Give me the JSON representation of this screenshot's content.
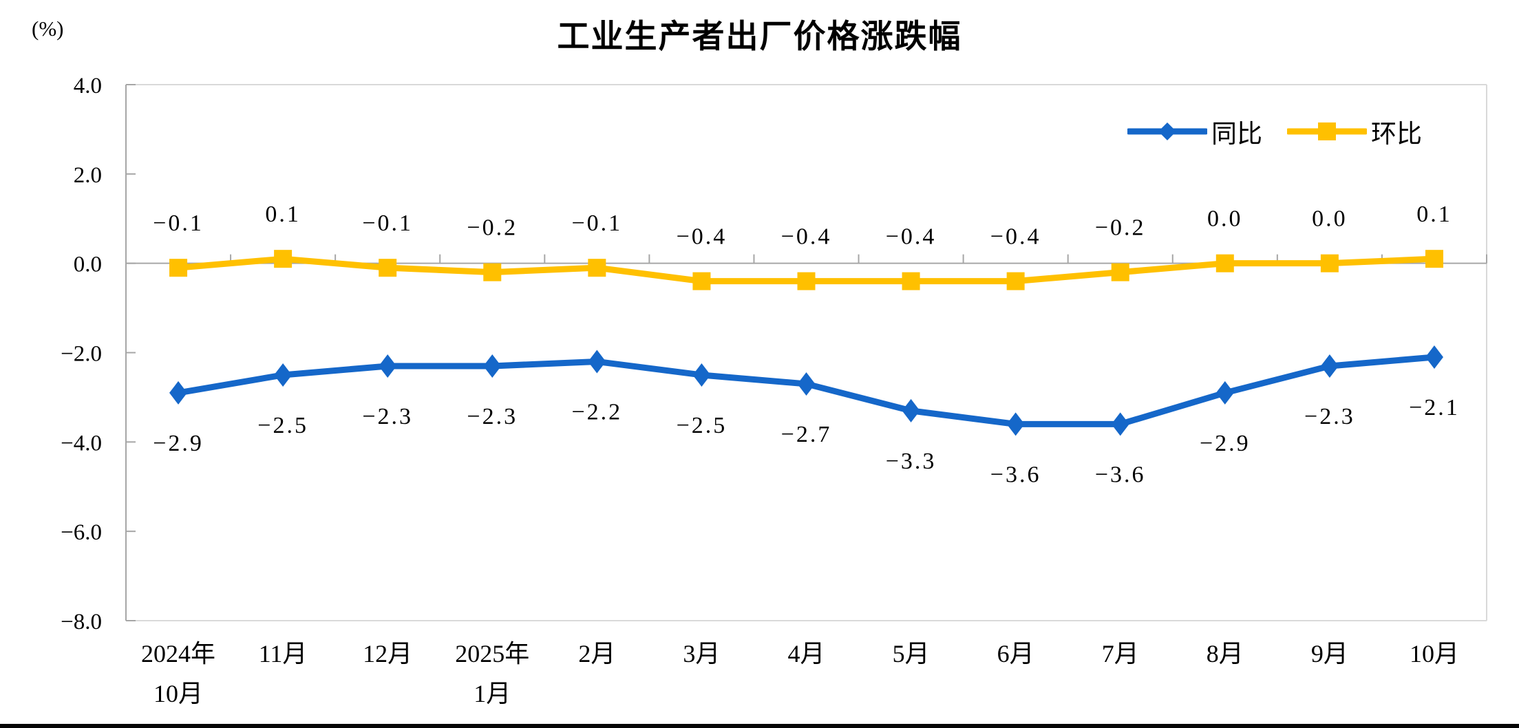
{
  "colors": {
    "yoy_blue": "#1567C9",
    "mom_gold": "#FFC000",
    "axis_gray": "#A6A6A6",
    "border_gray": "#D9D9D9",
    "text_black": "#000000"
  },
  "chart_data": {
    "type": "line",
    "title": "工业生产者出厂价格涨跌幅",
    "ylabel": "(%)",
    "xlabel": "",
    "ylim": [
      -8.0,
      4.0
    ],
    "ytick_labels": [
      "4.0",
      "2.0",
      "0.0",
      "-2.0",
      "-4.0",
      "-6.0",
      "-8.0"
    ],
    "grid": "off",
    "legend_position": "top-right-inside",
    "categories_lines": [
      [
        "2024年",
        "10月"
      ],
      [
        "11月"
      ],
      [
        "12月"
      ],
      [
        "2025年",
        "1月"
      ],
      [
        "2月"
      ],
      [
        "3月"
      ],
      [
        "4月"
      ],
      [
        "5月"
      ],
      [
        "6月"
      ],
      [
        "7月"
      ],
      [
        "8月"
      ],
      [
        "9月"
      ],
      [
        "10月"
      ]
    ],
    "series": [
      {
        "name": "同比",
        "marker": "diamond",
        "color": "#1567C9",
        "label_side": "below",
        "values": [
          -2.9,
          -2.5,
          -2.3,
          -2.3,
          -2.2,
          -2.5,
          -2.7,
          -3.3,
          -3.6,
          -3.6,
          -2.9,
          -2.3,
          -2.1
        ]
      },
      {
        "name": "环比",
        "marker": "square",
        "color": "#FFC000",
        "label_side": "above",
        "values": [
          -0.1,
          0.1,
          -0.1,
          -0.2,
          -0.1,
          -0.4,
          -0.4,
          -0.4,
          -0.4,
          -0.2,
          0.0,
          0.0,
          0.1
        ]
      }
    ]
  }
}
